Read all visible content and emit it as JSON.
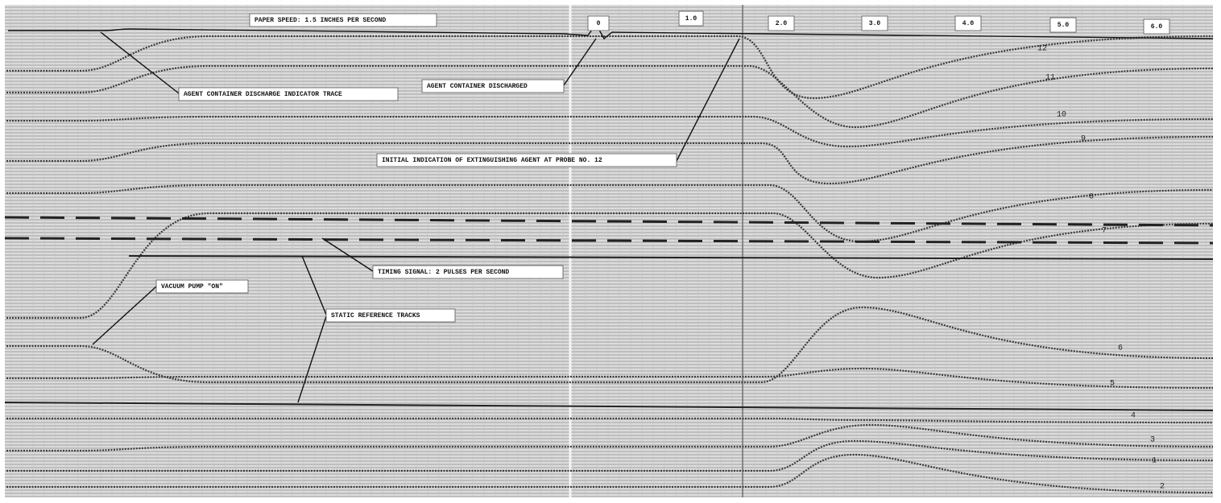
{
  "header": {
    "paper_speed": "PAPER SPEED: 1.5 INCHES PER SECOND"
  },
  "time_markers": [
    "0",
    "1.0",
    "2.0",
    "3.0",
    "4.0",
    "5.0",
    "6.0"
  ],
  "annotations": {
    "discharge_indicator": "AGENT CONTAINER DISCHARGE INDICATOR TRACE",
    "discharged": "AGENT CONTAINER DISCHARGED",
    "initial_indication": "INITIAL INDICATION OF EXTINGUISHING AGENT AT PROBE NO. 12",
    "timing_signal": "TIMING SIGNAL: 2 PULSES PER SECOND",
    "vacuum_pump": "VACUUM PUMP \"ON\"",
    "static_reference": "STATIC REFERENCE TRACKS"
  },
  "probe_labels": [
    "12",
    "11",
    "10",
    "9",
    "8",
    "7",
    "6",
    "5",
    "4",
    "3",
    "1",
    "2"
  ]
}
